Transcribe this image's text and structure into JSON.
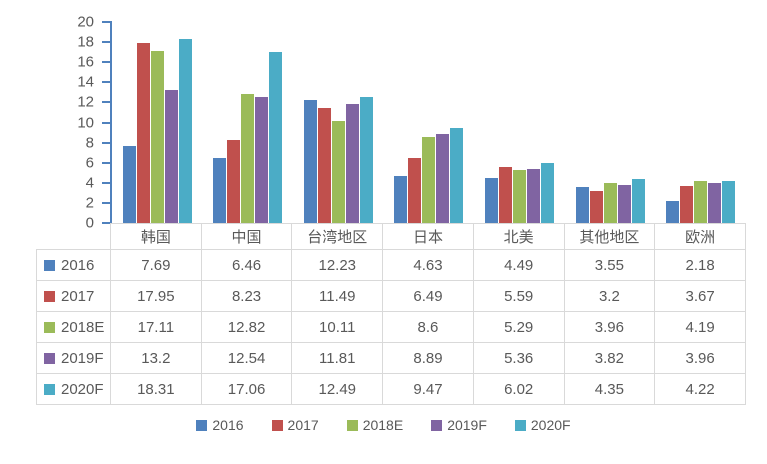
{
  "colors": {
    "background": "#FFFFFF",
    "axis": "#4F81BD",
    "text": "#595959",
    "border": "#D9D9D9"
  },
  "chart_data": {
    "type": "bar",
    "title": "",
    "xlabel": "",
    "ylabel": "",
    "categories": [
      "韩国",
      "中国",
      "台湾地区",
      "日本",
      "北美",
      "其他地区",
      "欧洲"
    ],
    "series": [
      {
        "name": "2016",
        "color": "#4F81BD",
        "values": [
          7.69,
          6.46,
          12.23,
          4.63,
          4.49,
          3.55,
          2.18
        ]
      },
      {
        "name": "2017",
        "color": "#C0504D",
        "values": [
          17.95,
          8.23,
          11.49,
          6.49,
          5.59,
          3.2,
          3.67
        ]
      },
      {
        "name": "2018E",
        "color": "#9BBB59",
        "values": [
          17.11,
          12.82,
          10.11,
          8.6,
          5.29,
          3.96,
          4.19
        ]
      },
      {
        "name": "2019F",
        "color": "#8064A2",
        "values": [
          13.2,
          12.54,
          11.81,
          8.89,
          5.36,
          3.82,
          3.96
        ]
      },
      {
        "name": "2020F",
        "color": "#4BACC6",
        "values": [
          18.31,
          17.06,
          12.49,
          9.47,
          6.02,
          4.35,
          4.22
        ]
      }
    ],
    "ylim": [
      0,
      20
    ],
    "ytick_step": 2,
    "grid": false,
    "legend_position": "bottom",
    "data_table_shown": true
  }
}
